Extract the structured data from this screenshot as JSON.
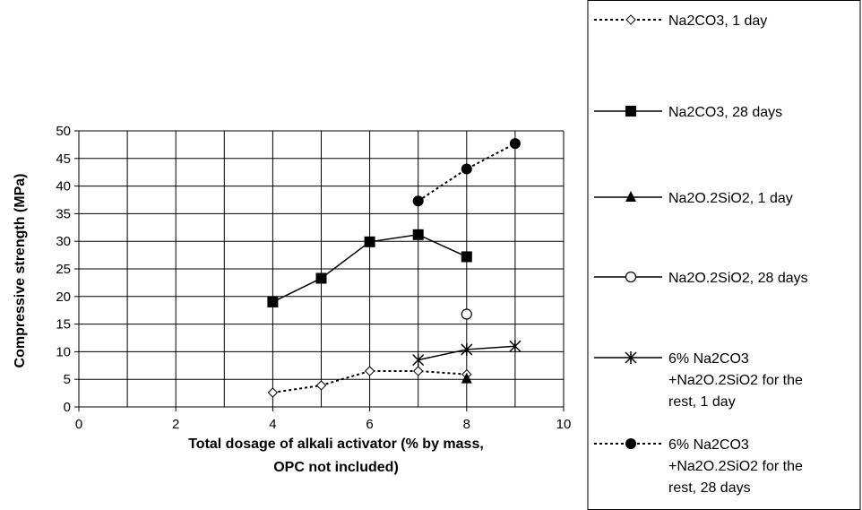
{
  "chart_data": {
    "type": "line",
    "xlabel": [
      "Total dosage of alkali activator (% by mass,",
      "OPC not included)"
    ],
    "ylabel": "Compressive strength (MPa)",
    "xlim": [
      0,
      10
    ],
    "ylim": [
      0,
      50
    ],
    "x_ticks": [
      "0",
      "2",
      "4",
      "6",
      "8",
      "10"
    ],
    "y_ticks": [
      "0",
      "5",
      "10",
      "15",
      "20",
      "25",
      "30",
      "35",
      "40",
      "45",
      "50"
    ],
    "grid": "on (vertical every 1, horizontal every 5)",
    "legend_position": "right (boxed)",
    "series": [
      {
        "name": [
          "Na2CO3, 1 day"
        ],
        "marker": "diamond-open",
        "line": "dotted",
        "color": "#000000",
        "x": [
          4,
          5,
          6,
          7,
          8
        ],
        "y": [
          2.6,
          3.9,
          6.5,
          6.5,
          5.9
        ]
      },
      {
        "name": [
          "Na2CO3, 28 days"
        ],
        "marker": "square-filled",
        "line": "solid",
        "color": "#000000",
        "x": [
          4,
          5,
          6,
          7,
          8
        ],
        "y": [
          19.0,
          23.3,
          29.9,
          31.2,
          27.2
        ]
      },
      {
        "name": [
          "Na2O.2SiO2, 1 day"
        ],
        "marker": "triangle-filled",
        "line": "solid",
        "color": "#000000",
        "x": [
          8
        ],
        "y": [
          5.1
        ]
      },
      {
        "name": [
          "Na2O.2SiO2, 28 days"
        ],
        "marker": "circle-open",
        "line": "solid",
        "color": "#000000",
        "x": [
          8
        ],
        "y": [
          16.8
        ]
      },
      {
        "name": [
          "6% Na2CO3",
          "+Na2O.2SiO2 for the",
          "rest, 1 day"
        ],
        "marker": "asterisk",
        "line": "solid",
        "color": "#000000",
        "x": [
          7,
          8,
          9
        ],
        "y": [
          8.5,
          10.4,
          11.0
        ]
      },
      {
        "name": [
          "6% Na2CO3",
          "+Na2O.2SiO2 for the",
          "rest, 28 days"
        ],
        "marker": "circle-filled",
        "line": "dotted",
        "color": "#000000",
        "x": [
          7,
          8,
          9
        ],
        "y": [
          37.3,
          43.1,
          47.7
        ]
      }
    ]
  }
}
